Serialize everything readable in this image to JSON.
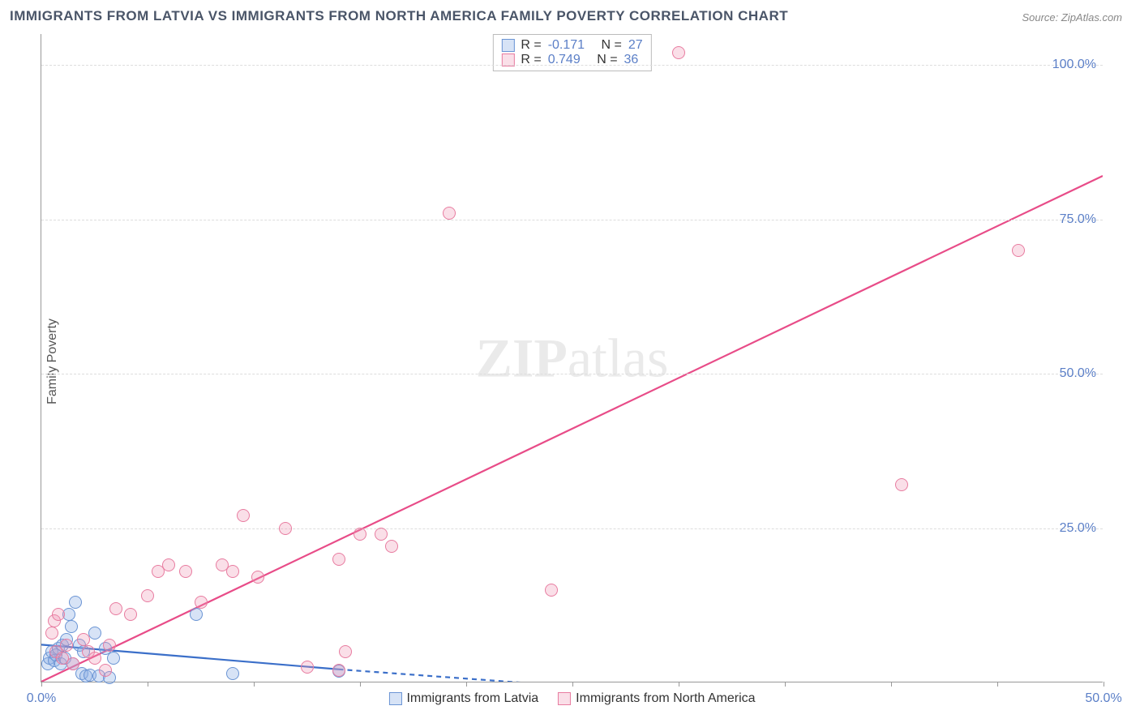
{
  "title": "IMMIGRANTS FROM LATVIA VS IMMIGRANTS FROM NORTH AMERICA FAMILY POVERTY CORRELATION CHART",
  "source": "Source: ZipAtlas.com",
  "watermark_bold": "ZIP",
  "watermark_light": "atlas",
  "y_axis_title": "Family Poverty",
  "chart": {
    "type": "scatter",
    "background_color": "#ffffff",
    "grid_color": "#dddddd",
    "axis_color": "#999999",
    "xlim": [
      0,
      50
    ],
    "ylim": [
      0,
      105
    ],
    "x_ticks": [
      0,
      5,
      10,
      15,
      20,
      25,
      30,
      35,
      40,
      45,
      50
    ],
    "x_tick_labels": {
      "0": "0.0%",
      "50": "50.0%"
    },
    "y_ticks": [
      25,
      50,
      75,
      100
    ],
    "y_tick_labels": {
      "25": "25.0%",
      "50": "50.0%",
      "75": "75.0%",
      "100": "100.0%"
    },
    "tick_label_color": "#5b7fc7",
    "tick_label_fontsize": 16,
    "title_fontsize": 17,
    "title_color": "#4a5568",
    "marker_radius": 8,
    "marker_stroke_width": 1.5,
    "series": [
      {
        "name": "Immigrants from Latvia",
        "fill_color": "rgba(140,175,230,0.35)",
        "stroke_color": "#6a94d4",
        "line_color": "#3b6fc9",
        "line_width": 2.2,
        "line_dash_extend": "6 5",
        "R_label": "R =",
        "R": "-0.171",
        "N_label": "N =",
        "N": "27",
        "trend_x1": 0,
        "trend_y1": 6.0,
        "trend_x2_solid": 14,
        "trend_y2_solid": 2.0,
        "trend_x2_dash": 30,
        "trend_y2_dash": -2.0,
        "points": [
          [
            0.3,
            3
          ],
          [
            0.4,
            4
          ],
          [
            0.5,
            5
          ],
          [
            0.6,
            3.5
          ],
          [
            0.7,
            4.5
          ],
          [
            0.8,
            5.5
          ],
          [
            0.9,
            3
          ],
          [
            1.0,
            6
          ],
          [
            1.1,
            4
          ],
          [
            1.2,
            7
          ],
          [
            1.3,
            11
          ],
          [
            1.4,
            9
          ],
          [
            1.5,
            3
          ],
          [
            1.6,
            13
          ],
          [
            1.8,
            6
          ],
          [
            1.9,
            1.5
          ],
          [
            2.0,
            5
          ],
          [
            2.1,
            1
          ],
          [
            2.3,
            1.2
          ],
          [
            2.5,
            8
          ],
          [
            2.7,
            1
          ],
          [
            3.0,
            5.5
          ],
          [
            3.2,
            0.8
          ],
          [
            3.4,
            4
          ],
          [
            7.3,
            11
          ],
          [
            9.0,
            1.5
          ],
          [
            14.0,
            1.8
          ]
        ]
      },
      {
        "name": "Immigrants from North America",
        "fill_color": "rgba(240,150,180,0.30)",
        "stroke_color": "#e87ca0",
        "line_color": "#e84c88",
        "line_width": 2.2,
        "R_label": "R =",
        "R": "0.749",
        "N_label": "N =",
        "N": "36",
        "trend_x1": 0,
        "trend_y1": 0,
        "trend_x2_solid": 50,
        "trend_y2_solid": 82,
        "points": [
          [
            0.5,
            8
          ],
          [
            0.6,
            10
          ],
          [
            0.7,
            5
          ],
          [
            0.8,
            11
          ],
          [
            1.0,
            4
          ],
          [
            1.2,
            6
          ],
          [
            1.5,
            3
          ],
          [
            2.0,
            7
          ],
          [
            2.2,
            5
          ],
          [
            2.5,
            4
          ],
          [
            3.0,
            2
          ],
          [
            3.2,
            6
          ],
          [
            3.5,
            12
          ],
          [
            4.2,
            11
          ],
          [
            5.0,
            14
          ],
          [
            5.5,
            18
          ],
          [
            6.0,
            19
          ],
          [
            6.8,
            18
          ],
          [
            7.5,
            13
          ],
          [
            8.5,
            19
          ],
          [
            9.0,
            18
          ],
          [
            9.5,
            27
          ],
          [
            10.2,
            17
          ],
          [
            11.5,
            25
          ],
          [
            12.5,
            2.5
          ],
          [
            14.0,
            2
          ],
          [
            14.0,
            20
          ],
          [
            14.3,
            5
          ],
          [
            15.0,
            24
          ],
          [
            16.0,
            24
          ],
          [
            16.5,
            22
          ],
          [
            19.2,
            76
          ],
          [
            24.0,
            15
          ],
          [
            30.0,
            102
          ],
          [
            40.5,
            32
          ],
          [
            46.0,
            70
          ]
        ]
      }
    ]
  },
  "stats_box": {
    "rows": [
      {
        "swatch_fill": "rgba(140,175,230,0.35)",
        "swatch_stroke": "#6a94d4"
      },
      {
        "swatch_fill": "rgba(240,150,180,0.30)",
        "swatch_stroke": "#e87ca0"
      }
    ]
  }
}
